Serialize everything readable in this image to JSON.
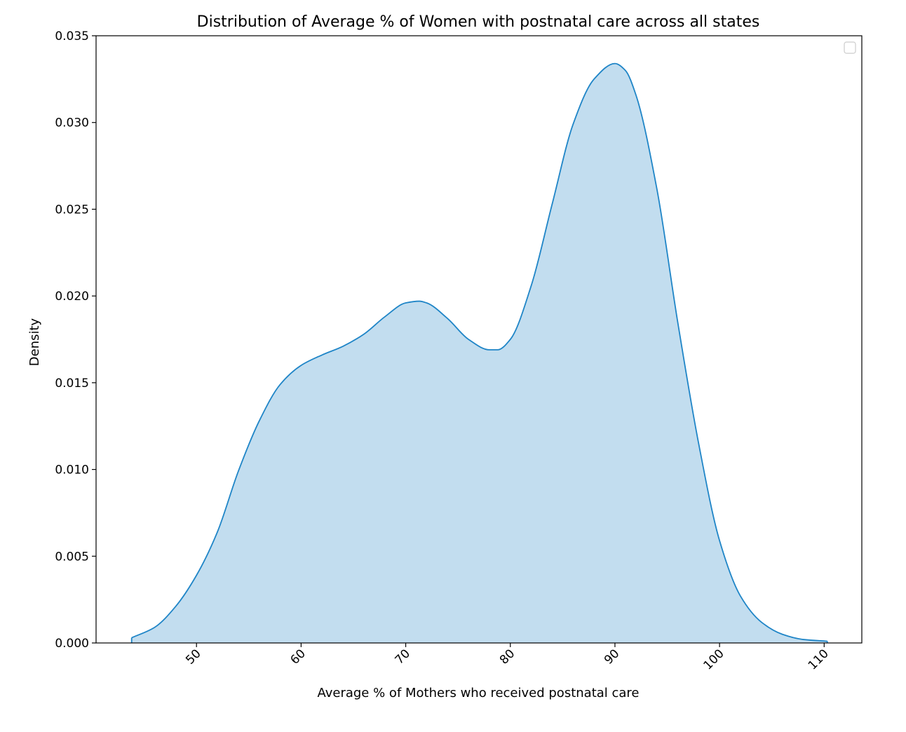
{
  "chart_data": {
    "type": "area",
    "title": "Distribution of Average % of Women with postnatal care across all states",
    "xlabel": "Average % of Mothers who received postnatal care",
    "ylabel": "Density",
    "xlim": [
      40.4,
      113.6
    ],
    "ylim": [
      0,
      0.035
    ],
    "xticks": [
      50,
      60,
      70,
      80,
      90,
      100,
      110
    ],
    "xtick_labels": [
      "50",
      "60",
      "70",
      "80",
      "90",
      "100",
      "110"
    ],
    "yticks": [
      0,
      0.005,
      0.01,
      0.015,
      0.02,
      0.025,
      0.03,
      0.035
    ],
    "ytick_labels": [
      "0.000",
      "0.005",
      "0.010",
      "0.015",
      "0.020",
      "0.025",
      "0.030",
      "0.035"
    ],
    "xtick_rotation_deg": 45,
    "grid": false,
    "legend": {
      "position": "top-right",
      "entries": []
    },
    "colors": {
      "line": "#1f85c7",
      "fill": "#c2ddef"
    },
    "series": [
      {
        "x": [
          43.8,
          46,
          48,
          50,
          52,
          54,
          56,
          58,
          60,
          62,
          64,
          66,
          68,
          70,
          71.3,
          72,
          74,
          76,
          78,
          78.8,
          80,
          82,
          84,
          86,
          88,
          90,
          91,
          92,
          94,
          96,
          98,
          100,
          102,
          104,
          106,
          108,
          110.3
        ],
        "y": [
          0.0003,
          0.0009,
          0.0021,
          0.0039,
          0.0064,
          0.0099,
          0.0128,
          0.0149,
          0.016,
          0.0166,
          0.0171,
          0.0178,
          0.0188,
          0.0196,
          0.0197,
          0.0196,
          0.0187,
          0.0175,
          0.0169,
          0.0169,
          0.0175,
          0.0206,
          0.0253,
          0.0299,
          0.0325,
          0.0334,
          0.033,
          0.0316,
          0.0262,
          0.0185,
          0.0115,
          0.0059,
          0.0027,
          0.0012,
          0.0005,
          0.0002,
          0.0001
        ]
      }
    ]
  }
}
